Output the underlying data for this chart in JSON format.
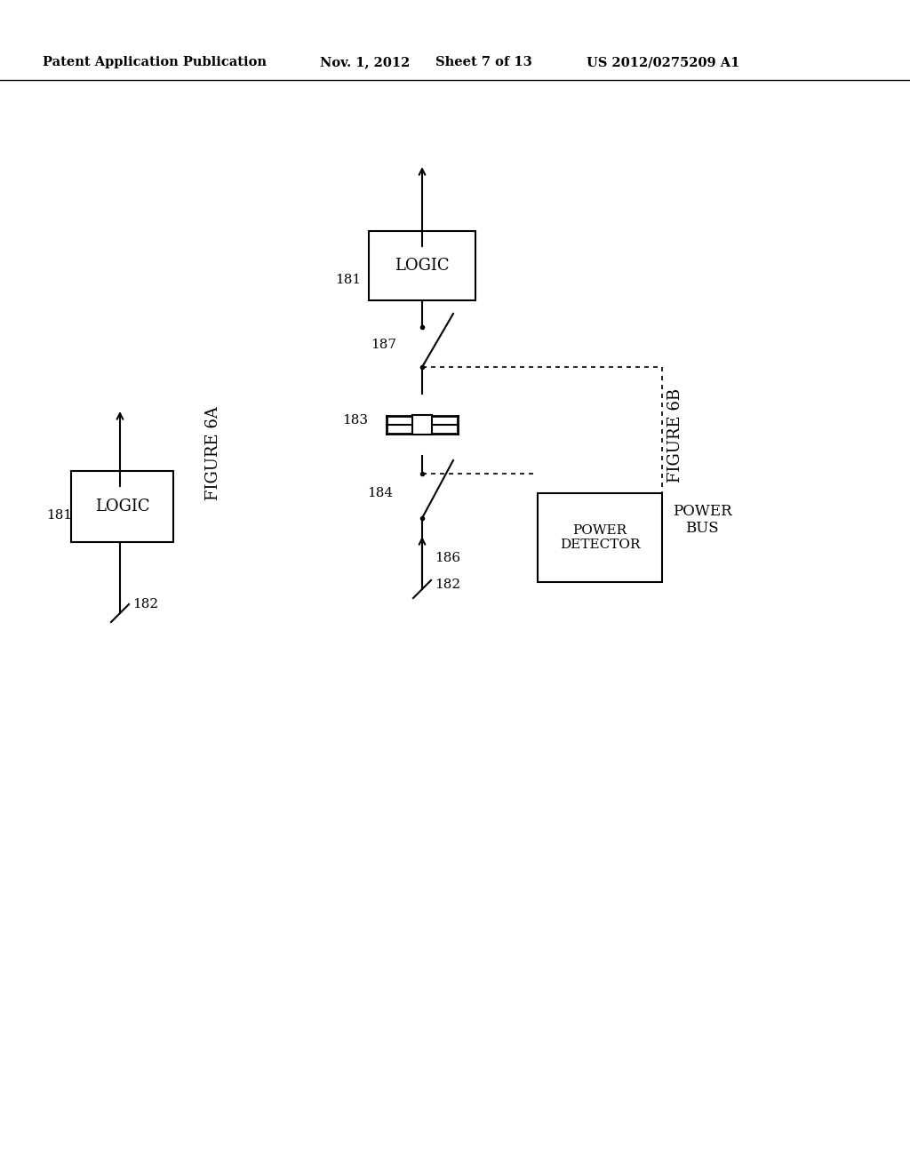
{
  "bg_color": "#ffffff",
  "header_text": "Patent Application Publication",
  "header_date": "Nov. 1, 2012",
  "header_sheet": "Sheet 7 of 13",
  "header_patent": "US 2012/0275209 A1",
  "fig6a_label": "FIGURE 6A",
  "fig6b_label": "FIGURE 6B"
}
